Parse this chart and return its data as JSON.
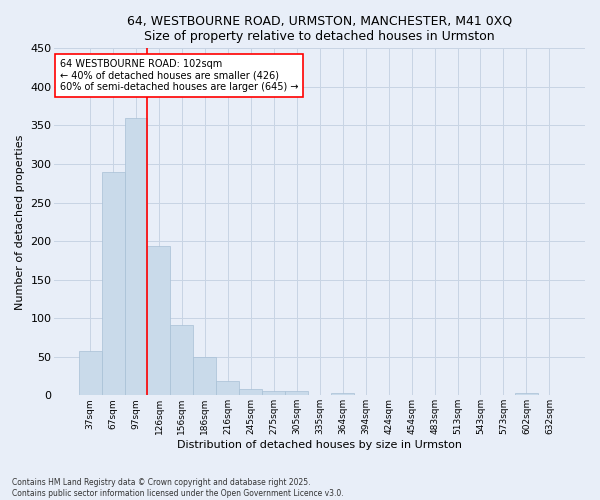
{
  "title_line1": "64, WESTBOURNE ROAD, URMSTON, MANCHESTER, M41 0XQ",
  "title_line2": "Size of property relative to detached houses in Urmston",
  "xlabel": "Distribution of detached houses by size in Urmston",
  "ylabel": "Number of detached properties",
  "categories": [
    "37sqm",
    "67sqm",
    "97sqm",
    "126sqm",
    "156sqm",
    "186sqm",
    "216sqm",
    "245sqm",
    "275sqm",
    "305sqm",
    "335sqm",
    "364sqm",
    "394sqm",
    "424sqm",
    "454sqm",
    "483sqm",
    "513sqm",
    "543sqm",
    "573sqm",
    "602sqm",
    "632sqm"
  ],
  "values": [
    57,
    290,
    360,
    193,
    91,
    50,
    18,
    8,
    5,
    5,
    0,
    3,
    0,
    0,
    0,
    0,
    0,
    0,
    0,
    3,
    0
  ],
  "bar_color": "#c9daea",
  "bar_edge_color": "#a8c0d6",
  "grid_color": "#c8d4e4",
  "background_color": "#e8eef8",
  "red_line_x": 2.5,
  "annotation_text": "64 WESTBOURNE ROAD: 102sqm\n← 40% of detached houses are smaller (426)\n60% of semi-detached houses are larger (645) →",
  "annotation_box_color": "white",
  "annotation_box_edge": "red",
  "red_line_color": "red",
  "footer_text": "Contains HM Land Registry data © Crown copyright and database right 2025.\nContains public sector information licensed under the Open Government Licence v3.0.",
  "ylim": [
    0,
    450
  ],
  "yticks": [
    0,
    50,
    100,
    150,
    200,
    250,
    300,
    350,
    400,
    450
  ],
  "figsize": [
    6.0,
    5.0
  ],
  "dpi": 100
}
